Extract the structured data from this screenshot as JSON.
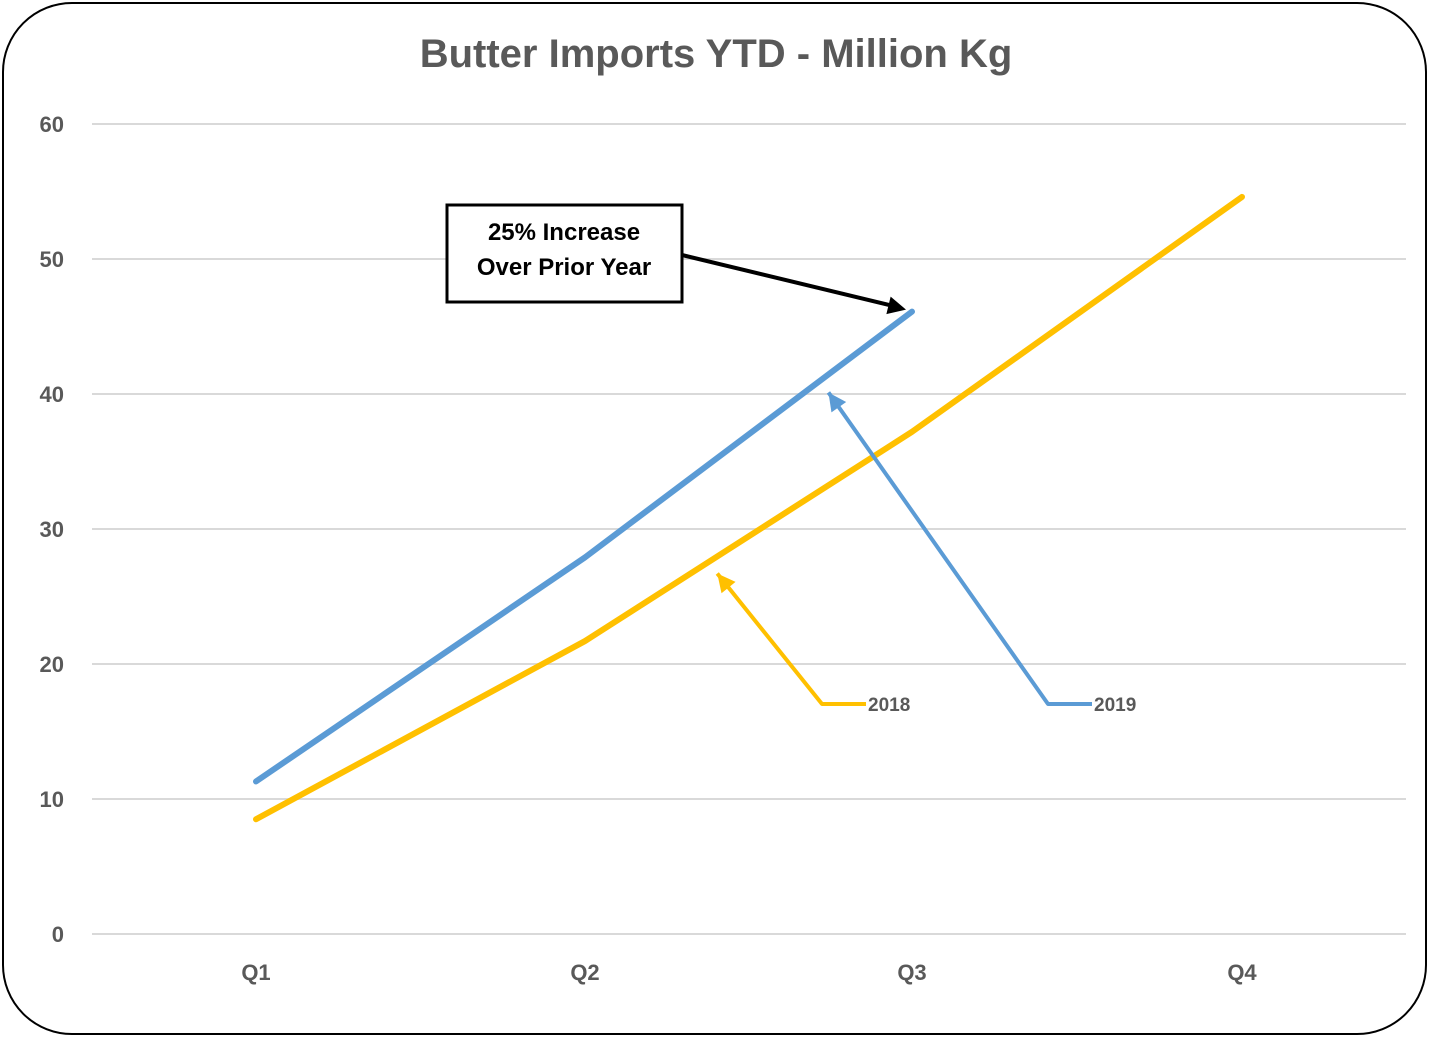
{
  "chart_data": {
    "type": "line",
    "title": "Butter Imports YTD - Million Kg",
    "xlabel": "",
    "ylabel": "",
    "categories": [
      "Q1",
      "Q2",
      "Q3",
      "Q4"
    ],
    "ylim": [
      0,
      60
    ],
    "yticks": [
      0,
      10,
      20,
      30,
      40,
      50,
      60
    ],
    "grid": true,
    "series": [
      {
        "name": "2018",
        "color": "#FFC000",
        "values": [
          8.5,
          21.7,
          37.2,
          54.6
        ]
      },
      {
        "name": "2019",
        "color": "#5B9BD5",
        "values": [
          11.3,
          27.9,
          46.1,
          null
        ]
      }
    ],
    "annotation": {
      "line1": "25% Increase",
      "line2": "Over Prior Year"
    }
  }
}
